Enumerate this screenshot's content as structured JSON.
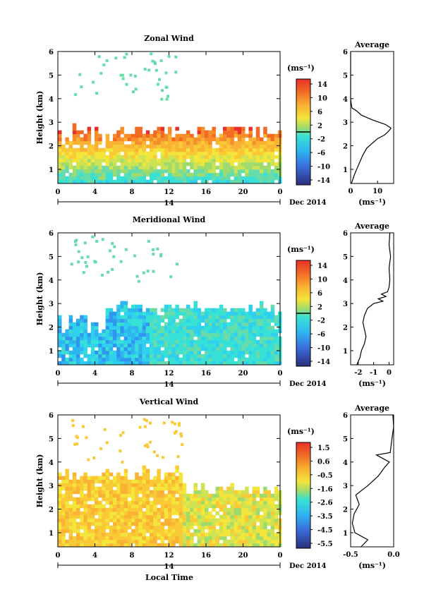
{
  "figure": {
    "xlabel": "Local Time",
    "date_label": "Dec 2014",
    "day_label": "14",
    "unit_label": "(ms⁻¹)",
    "avg_title": "Average"
  },
  "chart_data": [
    {
      "type": "heatmap",
      "title": "Zonal Wind",
      "ylabel": "Height (km)",
      "xlabel": "",
      "x_ticks": [
        "0",
        "4",
        "8",
        "12",
        "16",
        "20",
        "0"
      ],
      "y_ticks": [
        "1",
        "2",
        "3",
        "4",
        "5",
        "6"
      ],
      "xlim": [
        0,
        24
      ],
      "ylim": [
        0.4,
        6
      ],
      "colorbar": {
        "unit": "(ms⁻¹)",
        "tick_labels": [
          "14",
          "10",
          "6",
          "2",
          "-2",
          "-6",
          "-10",
          "-14"
        ],
        "range": [
          -16,
          16
        ]
      },
      "average": {
        "title": "Average",
        "xlabel": "(ms⁻¹)",
        "x_ticks": [
          "0",
          "10"
        ],
        "y_ticks": [
          "1",
          "2",
          "3",
          "4",
          "5",
          "6"
        ],
        "xlim": [
          0,
          16
        ],
        "profile": [
          [
            0.3,
            0.4
          ],
          [
            1.5,
            0.8
          ],
          [
            3.0,
            1.2
          ],
          [
            4.5,
            1.6
          ],
          [
            6.0,
            1.9
          ],
          [
            8.0,
            2.1
          ],
          [
            10.0,
            2.3
          ],
          [
            12.5,
            2.45
          ],
          [
            14.0,
            2.6
          ],
          [
            15.0,
            2.75
          ],
          [
            13.0,
            2.9
          ],
          [
            8.0,
            3.1
          ],
          [
            4.0,
            3.3
          ],
          [
            2.0,
            3.5
          ],
          [
            0.5,
            3.6
          ],
          [
            0.2,
            3.8
          ],
          [
            0.0,
            4.0
          ],
          [
            0.0,
            6.0
          ]
        ]
      }
    },
    {
      "type": "heatmap",
      "title": "Meridional Wind",
      "ylabel": "Height (km)",
      "xlabel": "",
      "x_ticks": [
        "0",
        "4",
        "8",
        "12",
        "16",
        "20",
        "0"
      ],
      "y_ticks": [
        "1",
        "2",
        "3",
        "4",
        "5",
        "6"
      ],
      "xlim": [
        0,
        24
      ],
      "ylim": [
        0.4,
        6
      ],
      "colorbar": {
        "unit": "(ms⁻¹)",
        "tick_labels": [
          "14",
          "10",
          "6",
          "2",
          "-2",
          "-6",
          "-10",
          "-14"
        ],
        "range": [
          -16,
          16
        ]
      },
      "average": {
        "title": "Average",
        "xlabel": "(ms⁻¹)",
        "x_ticks": [
          "-2",
          "-1",
          "0"
        ],
        "y_ticks": [
          "1",
          "2",
          "3",
          "4",
          "5",
          "6"
        ],
        "xlim": [
          -2.5,
          0.3
        ],
        "profile": [
          [
            -2.1,
            0.4
          ],
          [
            -1.9,
            0.7
          ],
          [
            -1.8,
            1.0
          ],
          [
            -1.6,
            1.3
          ],
          [
            -1.5,
            1.6
          ],
          [
            -1.6,
            1.9
          ],
          [
            -1.7,
            2.2
          ],
          [
            -1.6,
            2.5
          ],
          [
            -1.4,
            2.8
          ],
          [
            -1.0,
            3.0
          ],
          [
            -0.4,
            3.1
          ],
          [
            -0.7,
            3.2
          ],
          [
            -0.2,
            3.3
          ],
          [
            -0.5,
            3.4
          ],
          [
            -0.1,
            3.5
          ],
          [
            0.0,
            3.7
          ],
          [
            0.05,
            4.0
          ],
          [
            0.0,
            4.5
          ],
          [
            0.1,
            5.0
          ],
          [
            0.0,
            5.5
          ],
          [
            0.05,
            6.0
          ]
        ]
      }
    },
    {
      "type": "heatmap",
      "title": "Vertical Wind",
      "ylabel": "Height (km)",
      "xlabel": "Local Time",
      "x_ticks": [
        "0",
        "4",
        "8",
        "12",
        "16",
        "20",
        "0"
      ],
      "y_ticks": [
        "1",
        "2",
        "3",
        "4",
        "5",
        "6"
      ],
      "xlim": [
        0,
        24
      ],
      "ylim": [
        0.4,
        6
      ],
      "colorbar": {
        "unit": "(ms⁻¹)",
        "tick_labels": [
          "1.5",
          "0.6",
          "-0.5",
          "-1.6",
          "-2.6",
          "-3.5",
          "-4.5",
          "-5.5"
        ],
        "range": [
          -6.0,
          2.0
        ]
      },
      "average": {
        "title": "Average",
        "xlabel": "(ms⁻¹)",
        "x_ticks": [
          "-0.5",
          "0.0"
        ],
        "y_ticks": [
          "1",
          "2",
          "3",
          "4",
          "5",
          "6"
        ],
        "xlim": [
          -0.5,
          0.0
        ],
        "profile": [
          [
            -0.38,
            0.4
          ],
          [
            -0.3,
            0.7
          ],
          [
            -0.45,
            1.0
          ],
          [
            -0.48,
            1.4
          ],
          [
            -0.46,
            1.8
          ],
          [
            -0.4,
            2.2
          ],
          [
            -0.44,
            2.6
          ],
          [
            -0.3,
            3.0
          ],
          [
            -0.18,
            3.4
          ],
          [
            -0.1,
            3.8
          ],
          [
            -0.05,
            4.0
          ],
          [
            -0.2,
            4.3
          ],
          [
            -0.04,
            4.4
          ],
          [
            -0.02,
            5.0
          ],
          [
            0.0,
            5.5
          ],
          [
            -0.01,
            6.0
          ]
        ]
      }
    }
  ]
}
